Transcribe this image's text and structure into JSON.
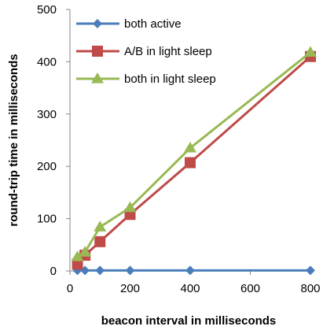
{
  "chart_data": {
    "type": "line",
    "xlabel": "beacon interval in milliseconds",
    "ylabel": "round-trip time in milliseconds",
    "xlim": [
      0,
      800
    ],
    "ylim": [
      0,
      500
    ],
    "xticks": [
      0,
      200,
      400,
      600,
      800
    ],
    "yticks": [
      0,
      100,
      200,
      300,
      400,
      500
    ],
    "grid": false,
    "legend_position": "top-left",
    "series": [
      {
        "name": "both active",
        "color": "#4a7ebb",
        "marker": "diamond",
        "x": [
          25,
          50,
          100,
          200,
          400,
          800
        ],
        "y": [
          1,
          1,
          1,
          1,
          1,
          1
        ]
      },
      {
        "name": "A/B in light sleep",
        "color": "#be4b48",
        "marker": "square",
        "x": [
          25,
          50,
          100,
          200,
          400,
          800
        ],
        "y": [
          13,
          30,
          56,
          108,
          207,
          410
        ]
      },
      {
        "name": "both in light sleep",
        "color": "#98b954",
        "marker": "triangle",
        "x": [
          25,
          50,
          100,
          200,
          400,
          800
        ],
        "y": [
          27,
          36,
          84,
          121,
          235,
          418
        ]
      }
    ]
  }
}
